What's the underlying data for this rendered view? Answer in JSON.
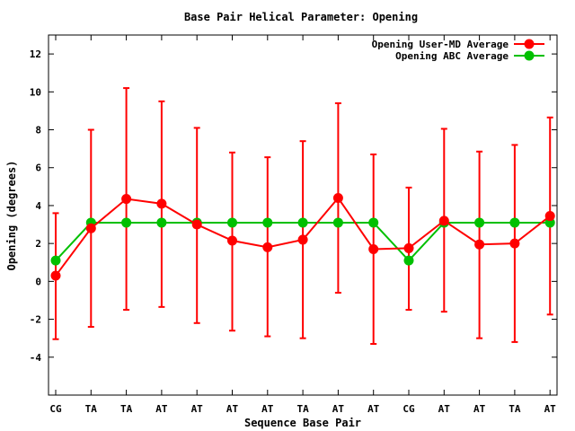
{
  "chart_data": {
    "type": "line",
    "title": "Base Pair Helical Parameter: Opening",
    "xlabel": "Sequence Base Pair",
    "ylabel": "Opening (degrees)",
    "ylim": [
      -6,
      13
    ],
    "yticks": [
      -4,
      -2,
      0,
      2,
      4,
      6,
      8,
      10,
      12
    ],
    "categories": [
      "CG",
      "TA",
      "TA",
      "AT",
      "AT",
      "AT",
      "AT",
      "TA",
      "AT",
      "AT",
      "CG",
      "AT",
      "AT",
      "TA",
      "AT"
    ],
    "grid": false,
    "legend": "top-right",
    "series": [
      {
        "name": "Opening User-MD Average",
        "color": "#ff0000",
        "values": [
          0.3,
          2.8,
          4.35,
          4.1,
          3.0,
          2.15,
          1.8,
          2.2,
          4.4,
          1.7,
          1.75,
          3.2,
          1.95,
          2.0,
          3.45
        ],
        "error_low": [
          -3.05,
          -2.4,
          -1.5,
          -1.35,
          -2.2,
          -2.6,
          -2.9,
          -3.0,
          -0.6,
          -3.3,
          -1.5,
          -1.6,
          -3.0,
          -3.2,
          -1.75
        ],
        "error_high": [
          3.6,
          8.0,
          10.2,
          9.5,
          8.1,
          6.8,
          6.55,
          7.4,
          9.4,
          6.7,
          4.95,
          8.05,
          6.85,
          7.2,
          8.65
        ]
      },
      {
        "name": "Opening ABC Average",
        "color": "#00c000",
        "values": [
          1.1,
          3.1,
          3.1,
          3.1,
          3.1,
          3.1,
          3.1,
          3.1,
          3.1,
          3.1,
          1.1,
          3.1,
          3.1,
          3.1,
          3.1
        ]
      }
    ]
  }
}
